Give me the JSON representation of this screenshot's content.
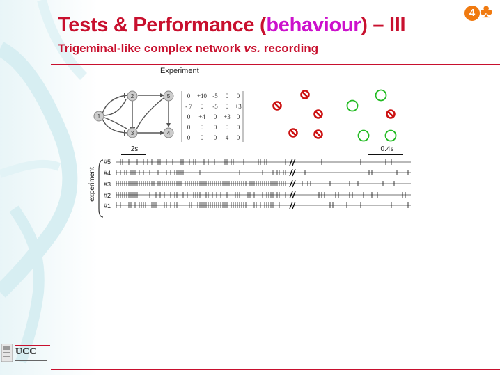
{
  "slide": {
    "title_pre": "Tests & Performance (",
    "title_hl": "behaviour",
    "title_post": ") – III",
    "subtitle_pre": "Trigeminal-like complex network ",
    "subtitle_vs": "vs.",
    "subtitle_post": " recording",
    "badge_number": "4",
    "badge_suit": "♣"
  },
  "figure": {
    "experiment_label": "Experiment",
    "nodes": [
      "1",
      "2",
      "3",
      "4",
      "5"
    ],
    "matrix": [
      [
        "0",
        "+10",
        "-5",
        "0",
        "0"
      ],
      [
        "- 7",
        "0",
        "-5",
        "0",
        "+3"
      ],
      [
        "0",
        "+4",
        "0",
        "+3",
        "0"
      ],
      [
        "0",
        "0",
        "0",
        "0",
        "0"
      ],
      [
        "0",
        "0",
        "0",
        "4",
        "0"
      ]
    ],
    "scale_left": "2s",
    "scale_right": "0.4s",
    "axis_label": "experiment",
    "trace_labels": [
      "#5",
      "#4",
      "#3",
      "#2",
      "#1"
    ]
  },
  "logo": {
    "text": "UCC"
  },
  "colors": {
    "title": "#c8102e",
    "highlight": "#cc11cc",
    "inhibitory": "#cc1111",
    "excitatory": "#22bb22",
    "badge": "#f07a10"
  }
}
